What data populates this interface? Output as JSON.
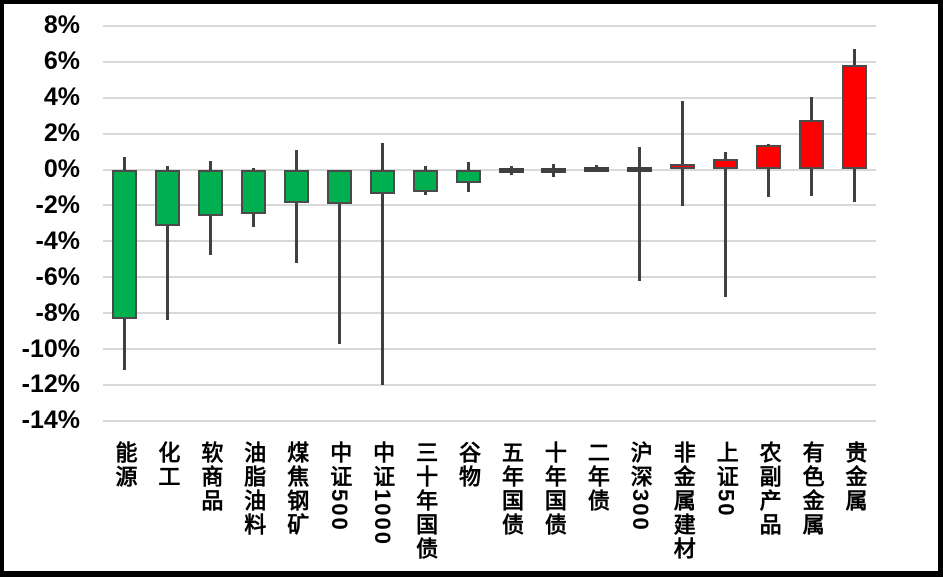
{
  "chart_data": {
    "type": "candlestick",
    "title": "",
    "xlabel": "",
    "ylabel": "",
    "ylim": [
      -14,
      8
    ],
    "ytick_step": 2,
    "grid": true,
    "yticks": [
      {
        "value": 8,
        "label": "8%"
      },
      {
        "value": 6,
        "label": "6%"
      },
      {
        "value": 4,
        "label": "4%"
      },
      {
        "value": 2,
        "label": "2%"
      },
      {
        "value": 0,
        "label": "0%"
      },
      {
        "value": -2,
        "label": "-2%"
      },
      {
        "value": -4,
        "label": "-4%"
      },
      {
        "value": -6,
        "label": "-6%"
      },
      {
        "value": -8,
        "label": "-8%"
      },
      {
        "value": -10,
        "label": "-10%"
      },
      {
        "value": -12,
        "label": "-12%"
      },
      {
        "value": -14,
        "label": "-14%"
      }
    ],
    "categories": [
      "能源",
      "化工",
      "软商品",
      "油脂油料",
      "煤焦钢矿",
      "中证500",
      "中证1000",
      "三十年国债",
      "谷物",
      "五年国债",
      "十年国债",
      "二年债",
      "沪深300",
      "非金属建材",
      "上证50",
      "农副产品",
      "有色金属",
      "贵金属"
    ],
    "candles": [
      {
        "label": "能源",
        "open": 0,
        "high": 0.7,
        "low": -11.2,
        "close": -8.35,
        "dir": "down"
      },
      {
        "label": "化工",
        "open": 0,
        "high": 0.2,
        "low": -8.4,
        "close": -3.15,
        "dir": "down"
      },
      {
        "label": "软商品",
        "open": 0,
        "high": 0.5,
        "low": -4.75,
        "close": -2.6,
        "dir": "down"
      },
      {
        "label": "油脂油料",
        "open": 0,
        "high": 0.1,
        "low": -3.2,
        "close": -2.5,
        "dir": "down"
      },
      {
        "label": "煤焦钢矿",
        "open": 0,
        "high": 1.1,
        "low": -5.2,
        "close": -1.85,
        "dir": "down"
      },
      {
        "label": "中证500",
        "open": 0,
        "high": 0.0,
        "low": -9.7,
        "close": -1.9,
        "dir": "down"
      },
      {
        "label": "中证1000",
        "open": 0,
        "high": 1.5,
        "low": -12.0,
        "close": -1.35,
        "dir": "down"
      },
      {
        "label": "三十年国债",
        "open": 0,
        "high": 0.2,
        "low": -1.45,
        "close": -1.25,
        "dir": "down"
      },
      {
        "label": "谷物",
        "open": 0,
        "high": 0.4,
        "low": -1.25,
        "close": -0.75,
        "dir": "down"
      },
      {
        "label": "五年国债",
        "open": 0,
        "high": 0.2,
        "low": -0.3,
        "close": -0.1,
        "dir": "down"
      },
      {
        "label": "十年国债",
        "open": 0,
        "high": 0.3,
        "low": -0.4,
        "close": -0.15,
        "dir": "down"
      },
      {
        "label": "二年债",
        "open": 0,
        "high": 0.25,
        "low": -0.1,
        "close": -0.05,
        "dir": "down"
      },
      {
        "label": "沪深300",
        "open": 0.1,
        "high": 1.25,
        "low": -6.2,
        "close": -0.1,
        "dir": "down"
      },
      {
        "label": "非金属建材",
        "open": 0,
        "high": 3.8,
        "low": -2.05,
        "close": 0.3,
        "dir": "up"
      },
      {
        "label": "上证50",
        "open": 0,
        "high": 1.0,
        "low": -7.1,
        "close": 0.6,
        "dir": "up"
      },
      {
        "label": "农副产品",
        "open": 0,
        "high": 1.45,
        "low": -1.55,
        "close": 1.35,
        "dir": "up"
      },
      {
        "label": "有色金属",
        "open": 0,
        "high": 4.05,
        "low": -1.5,
        "close": 2.75,
        "dir": "up"
      },
      {
        "label": "贵金属",
        "open": 0,
        "high": 6.7,
        "low": -1.8,
        "close": 5.8,
        "dir": "up"
      }
    ],
    "colors": {
      "up": "#FF0000",
      "down": "#00B050",
      "wick": "#404040",
      "body_border": "#4a4a4a",
      "grid": "#D9D9D9",
      "text": "#000000",
      "frame": "#000000"
    },
    "legend": null
  }
}
